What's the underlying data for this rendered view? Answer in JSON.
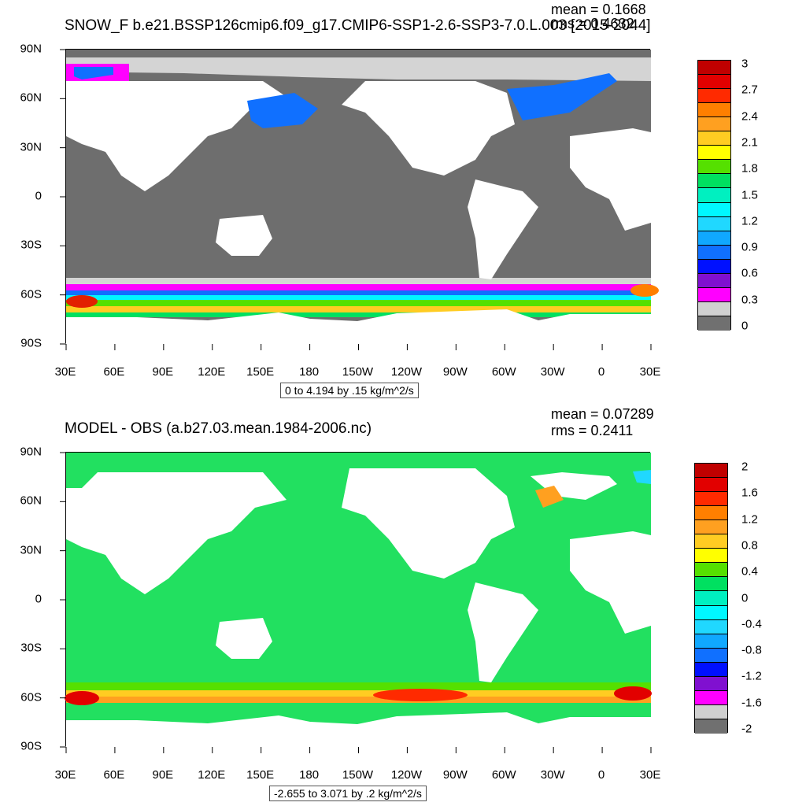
{
  "panels": [
    {
      "id": "top",
      "title": "SNOW_F b.e21.BSSP126cmip6.f09_g17.CMIP6-SSP1-2.6-SSP3-7.0.L.003 [2015-2044]",
      "mean_text": "mean = 0.1668",
      "rms_text": "rms = 0.4632",
      "range_text": "0 to 4.194 by .15 kg/m^2/s",
      "colorbar": {
        "labels": [
          "3",
          "2.7",
          "2.4",
          "2.1",
          "1.8",
          "1.5",
          "1.2",
          "0.9",
          "0.6",
          "0.3",
          "0"
        ],
        "colors": [
          "#c00000",
          "#e20000",
          "#ff2a00",
          "#ff7f00",
          "#ffa020",
          "#ffcc22",
          "#ffff00",
          "#55e000",
          "#00e060",
          "#00f0c0",
          "#00f8ff",
          "#20d8ff",
          "#10a8ff",
          "#1070ff",
          "#0010ff",
          "#8010d0",
          "#ff00ff",
          "#d0d0d0",
          "#707070"
        ]
      }
    },
    {
      "id": "bottom",
      "title": "MODEL - OBS (a.b27.03.mean.1984-2006.nc)",
      "mean_text": "mean = 0.07289",
      "rms_text": "rms = 0.2411",
      "range_text": "-2.655 to 3.071 by .2 kg/m^2/s",
      "colorbar": {
        "labels": [
          "2",
          "1.6",
          "1.2",
          "0.8",
          "0.4",
          "0",
          "-0.4",
          "-0.8",
          "-1.2",
          "-1.6",
          "-2"
        ],
        "colors": [
          "#c00000",
          "#e20000",
          "#ff2a00",
          "#ff7f00",
          "#ffa020",
          "#ffcc22",
          "#ffff00",
          "#55e000",
          "#00e060",
          "#00f0c0",
          "#00f8ff",
          "#20d8ff",
          "#10a8ff",
          "#1070ff",
          "#0010ff",
          "#8010d0",
          "#ff00ff",
          "#d0d0d0",
          "#707070"
        ]
      }
    }
  ],
  "lat_labels": [
    "90N",
    "60N",
    "30N",
    "0",
    "30S",
    "60S",
    "90S"
  ],
  "lon_labels": [
    "30E",
    "60E",
    "90E",
    "120E",
    "150E",
    "180",
    "150W",
    "120W",
    "90W",
    "60W",
    "30W",
    "0",
    "30E"
  ],
  "colors": {
    "ocean_top": "#6e6e6e",
    "ocean_bottom": "#22e060",
    "land": "#ffffff",
    "sea_ice": "#d4d4d4"
  }
}
